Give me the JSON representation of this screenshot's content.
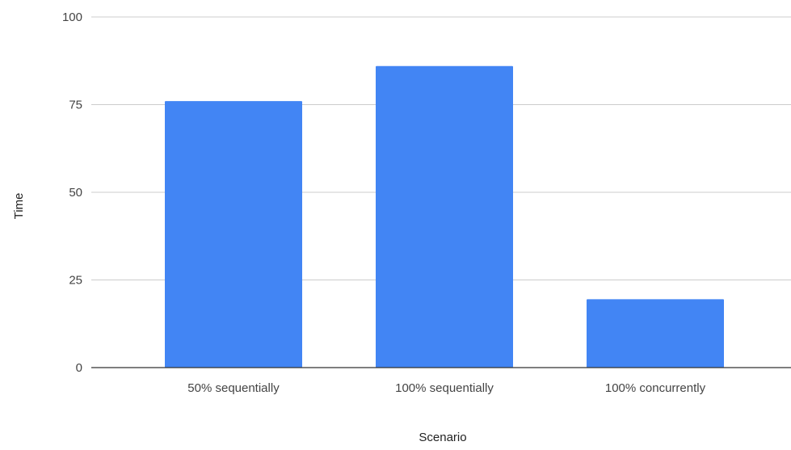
{
  "chart_data": {
    "type": "bar",
    "title": "",
    "xlabel": "Scenario",
    "ylabel": "Time",
    "categories": [
      "50% sequentially",
      "100% sequentially",
      "100% concurrently"
    ],
    "series": [
      {
        "values": [
          76,
          86,
          19.5
        ],
        "color": "#4285f4"
      }
    ],
    "ylim": [
      0,
      100
    ],
    "yticks": [
      0,
      25,
      50,
      75,
      100
    ],
    "ytick_labels": [
      "0",
      "25",
      "50",
      "75",
      "100"
    ],
    "grid": true,
    "legend": "none",
    "colors": {
      "gridline": "#cccccc",
      "baseline": "#333333",
      "tick_text": "#444444",
      "axis_title": "#222222"
    }
  }
}
